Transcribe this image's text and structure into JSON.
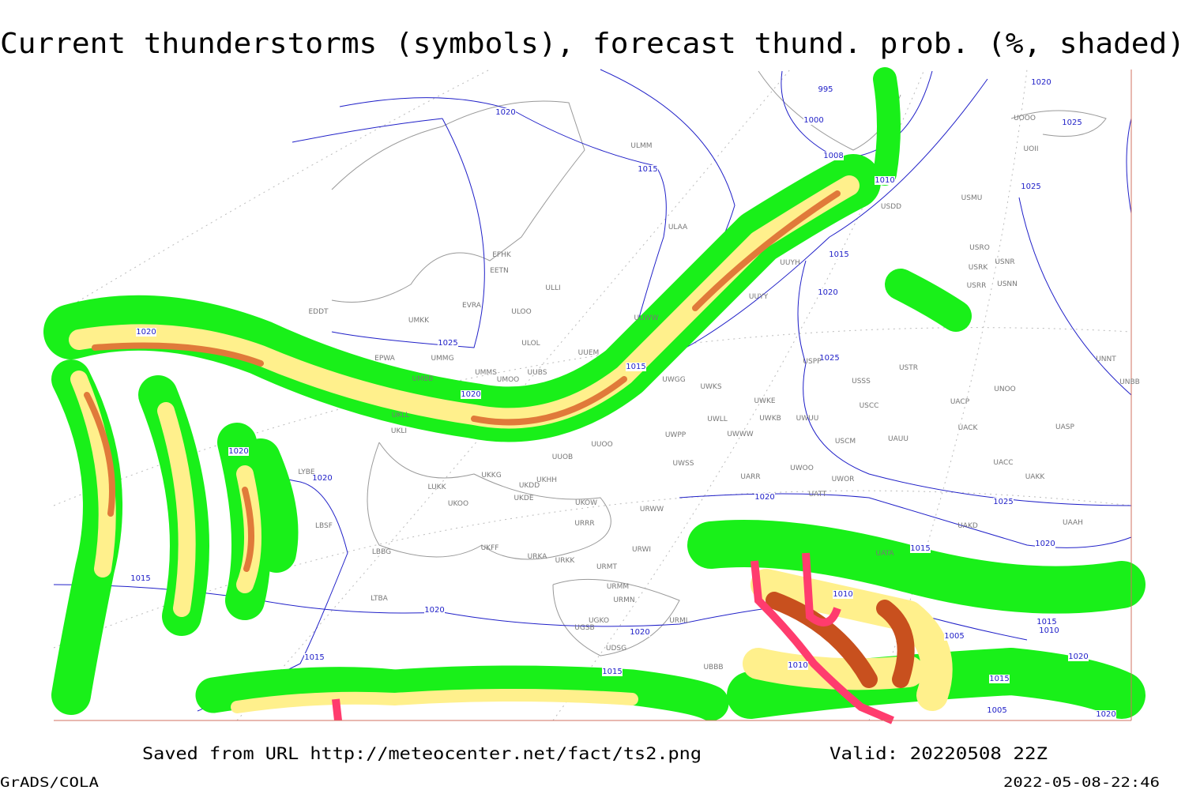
{
  "header": {
    "title": "Current thunderstorms (symbols), forecast thund. prob. (%, shaded)"
  },
  "map": {
    "isobar_labels": [
      995,
      1020,
      1000,
      1015,
      1008,
      1010,
      1025,
      1020,
      1025,
      1015,
      1020,
      1025,
      1020,
      1015,
      1025,
      1020,
      1020,
      1020,
      1020,
      1025,
      1020,
      1015,
      1015,
      1020,
      1010,
      1015,
      1020,
      1015,
      1010,
      1005,
      1015,
      1020,
      1005,
      1020,
      1015,
      1010
    ],
    "station_labels": [
      "ULMM",
      "ULAA",
      "EFHK",
      "EETN",
      "ULLI",
      "ULOO",
      "EVRA",
      "UMKK",
      "EDDT",
      "EPWA",
      "UMMG",
      "UMBB",
      "ULOL",
      "UUEM",
      "UMMS",
      "UMOO",
      "UUBS",
      "UUWW",
      "UUYH",
      "UUYY",
      "UWGG",
      "UWKS",
      "UWKE",
      "UWKB",
      "UWUU",
      "UWLL",
      "UWWW",
      "UWPP",
      "UUOO",
      "UUOB",
      "UKHH",
      "UKDD",
      "UKKG",
      "UKDE",
      "UKOW",
      "LUKK",
      "UKOO",
      "URRR",
      "LBSF",
      "UKFF",
      "LBBG",
      "URKA",
      "URKK",
      "URWI",
      "URMT",
      "URMM",
      "URMN",
      "URML",
      "UGSB",
      "UGKO",
      "UDSG",
      "UBBB",
      "LTBA",
      "USSS",
      "USTR",
      "USCC",
      "USCM",
      "UAUU",
      "USPP",
      "UACP",
      "UACK",
      "UACC",
      "UAKK",
      "UATT",
      "UWOO",
      "UWOR",
      "UARR",
      "UWSS",
      "URWW",
      "UNOO",
      "UNNT",
      "UNBB",
      "UASP",
      "UAKD",
      "UAAH",
      "UATA",
      "USMU",
      "USDD",
      "USRO",
      "USNR",
      "USRK",
      "USRR",
      "USNN",
      "UOOO",
      "UOII",
      "LYBE",
      "UKLL",
      "UKLI"
    ]
  },
  "footer": {
    "source": "Saved from URL http://meteocenter.net/fact/ts2.png",
    "valid": "Valid: 20220508 22Z",
    "software": "GrADS/COLA",
    "timestamp": "2022-05-08-22:46"
  }
}
